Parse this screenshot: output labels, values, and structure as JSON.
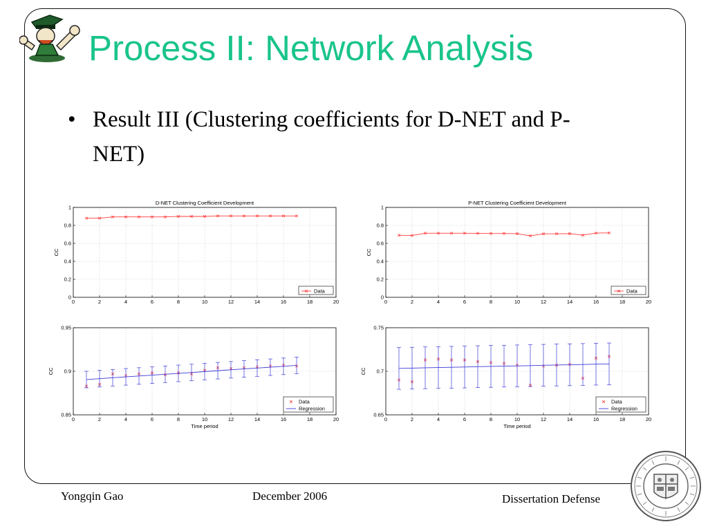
{
  "slide": {
    "title": "Process II: Network Analysis",
    "bullet_symbol": "•",
    "bullet_text": "Result III (Clustering coefficients for D-NET and P-NET)"
  },
  "footer": {
    "author": "Yongqin Gao",
    "date": "December 2006",
    "event": "Dissertation Defense"
  },
  "icons": {
    "logo": "leprechaun-mascot-icon",
    "seal": "university-seal-icon"
  },
  "colors": {
    "title": "#19c48c",
    "data": "#ff3b3b",
    "regression": "#3a3ad8"
  },
  "chart_data": [
    {
      "type": "line",
      "title": "D-NET Clustering Coefficient Development",
      "xlabel": "",
      "ylabel": "CC",
      "xlim": [
        0,
        20
      ],
      "ylim": [
        0,
        1
      ],
      "xticks": [
        0,
        2,
        4,
        6,
        8,
        10,
        12,
        14,
        16,
        18,
        20
      ],
      "yticks": [
        0,
        0.2,
        0.4,
        0.6,
        0.8,
        1
      ],
      "ytick_labels": [
        "0",
        "0.2",
        "0.4",
        "0.6",
        "0.8",
        "1"
      ],
      "grid": true,
      "legend_position": "bottom-right",
      "x": [
        1,
        2,
        3,
        4,
        5,
        6,
        7,
        8,
        9,
        10,
        11,
        12,
        13,
        14,
        15,
        16,
        17
      ],
      "series": [
        {
          "name": "Data",
          "kind": "line-marker",
          "color": "#ff3b3b",
          "values": [
            0.88,
            0.88,
            0.895,
            0.895,
            0.895,
            0.895,
            0.895,
            0.9,
            0.9,
            0.9,
            0.905,
            0.905,
            0.905,
            0.905,
            0.905,
            0.905,
            0.905
          ]
        }
      ]
    },
    {
      "type": "line",
      "title": "P-NET Clustering Coefficient Development",
      "xlabel": "",
      "ylabel": "CC",
      "xlim": [
        0,
        20
      ],
      "ylim": [
        0,
        1
      ],
      "xticks": [
        0,
        2,
        4,
        6,
        8,
        10,
        12,
        14,
        16,
        18,
        20
      ],
      "yticks": [
        0,
        0.2,
        0.4,
        0.6,
        0.8,
        1
      ],
      "ytick_labels": [
        "0",
        "0.2",
        "0.4",
        "0.6",
        "0.8",
        "1"
      ],
      "grid": true,
      "legend_position": "bottom-right",
      "x": [
        1,
        2,
        3,
        4,
        5,
        6,
        7,
        8,
        9,
        10,
        11,
        12,
        13,
        14,
        15,
        16,
        17
      ],
      "series": [
        {
          "name": "Data",
          "kind": "line-marker",
          "color": "#ff3b3b",
          "values": [
            0.69,
            0.688,
            0.713,
            0.713,
            0.713,
            0.713,
            0.711,
            0.71,
            0.71,
            0.708,
            0.684,
            0.706,
            0.707,
            0.708,
            0.692,
            0.715,
            0.717
          ]
        }
      ]
    },
    {
      "type": "scatter",
      "title": "",
      "xlabel": "Time period",
      "ylabel": "CC",
      "xlim": [
        0,
        20
      ],
      "ylim": [
        0.85,
        0.95
      ],
      "xticks": [
        0,
        2,
        4,
        6,
        8,
        10,
        12,
        14,
        16,
        18,
        20
      ],
      "yticks": [
        0.85,
        0.9,
        0.95
      ],
      "ytick_labels": [
        "0.85",
        "0.9",
        "0.95"
      ],
      "grid": true,
      "legend_position": "bottom-right",
      "x": [
        1,
        2,
        3,
        4,
        5,
        6,
        7,
        8,
        9,
        10,
        11,
        12,
        13,
        14,
        15,
        16,
        17
      ],
      "series": [
        {
          "name": "Data",
          "kind": "marker",
          "color": "#ff3b3b",
          "values": [
            0.883,
            0.885,
            0.897,
            0.895,
            0.897,
            0.898,
            0.896,
            0.898,
            0.897,
            0.901,
            0.904,
            0.903,
            0.904,
            0.905,
            0.906,
            0.907,
            0.906
          ]
        },
        {
          "name": "Regression",
          "kind": "line",
          "color": "#3a3ad8",
          "values": [
            0.8905,
            0.8915,
            0.8926,
            0.8936,
            0.8946,
            0.8956,
            0.8966,
            0.8976,
            0.8986,
            0.8997,
            0.9007,
            0.9017,
            0.9027,
            0.9037,
            0.9047,
            0.9057,
            0.9068
          ],
          "error_margin": 0.0095
        }
      ]
    },
    {
      "type": "scatter",
      "title": "",
      "xlabel": "Time period",
      "ylabel": "CC",
      "xlim": [
        0,
        20
      ],
      "ylim": [
        0.65,
        0.75
      ],
      "xticks": [
        0,
        2,
        4,
        6,
        8,
        10,
        12,
        14,
        16,
        18,
        20
      ],
      "yticks": [
        0.65,
        0.7,
        0.75
      ],
      "ytick_labels": [
        "0.65",
        "0.7",
        "0.75"
      ],
      "grid": true,
      "legend_position": "bottom-right",
      "x": [
        1,
        2,
        3,
        4,
        5,
        6,
        7,
        8,
        9,
        10,
        11,
        12,
        13,
        14,
        15,
        16,
        17
      ],
      "series": [
        {
          "name": "Data",
          "kind": "marker",
          "color": "#ff3b3b",
          "values": [
            0.69,
            0.688,
            0.713,
            0.714,
            0.713,
            0.713,
            0.711,
            0.71,
            0.709,
            0.707,
            0.684,
            0.706,
            0.707,
            0.708,
            0.692,
            0.715,
            0.717
          ]
        },
        {
          "name": "Regression",
          "kind": "line",
          "color": "#3a3ad8",
          "values": [
            0.7033,
            0.7036,
            0.704,
            0.7043,
            0.7046,
            0.7049,
            0.7053,
            0.7056,
            0.7059,
            0.7062,
            0.7065,
            0.7069,
            0.7072,
            0.7075,
            0.7078,
            0.7082,
            0.7085
          ],
          "error_margin": 0.024
        }
      ]
    }
  ]
}
